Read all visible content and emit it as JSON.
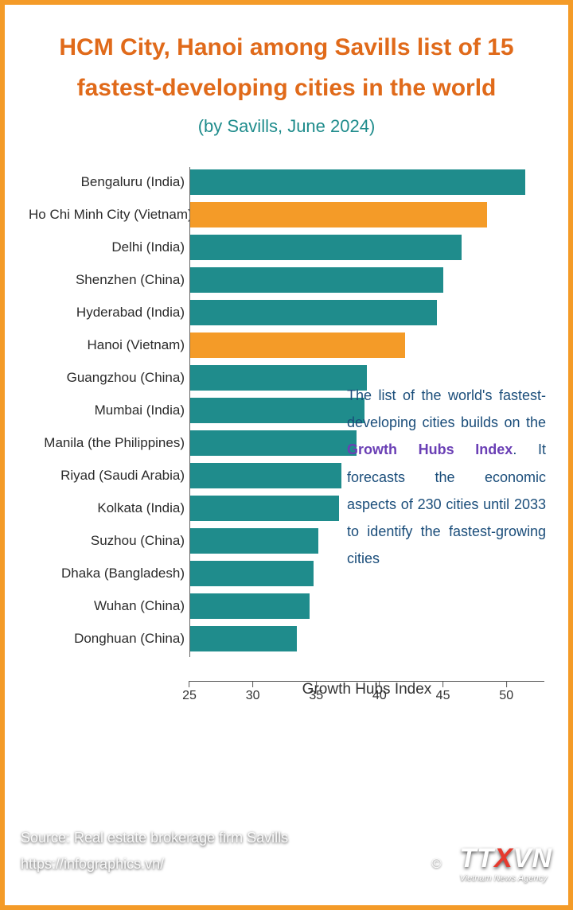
{
  "title": "HCM City, Hanoi among Savills list of 15 fastest-developing cities in the world",
  "subtitle": "(by Savills, June 2024)",
  "chart": {
    "type": "bar-horizontal",
    "x_label": "Growth Hubs Index",
    "x_min": 25,
    "x_max": 53,
    "x_ticks": [
      25,
      30,
      35,
      40,
      45,
      50
    ],
    "default_bar_color": "#1f8c8c",
    "highlight_bar_color": "#f49b28",
    "label_fontsize": 17,
    "tick_fontsize": 16,
    "bars": [
      {
        "label": "Bengaluru (India)",
        "value": 51.5,
        "highlight": false
      },
      {
        "label": "Ho Chi Minh City (Vietnam)",
        "value": 48.5,
        "highlight": true
      },
      {
        "label": "Delhi (India)",
        "value": 46.5,
        "highlight": false
      },
      {
        "label": "Shenzhen (China)",
        "value": 45.0,
        "highlight": false
      },
      {
        "label": "Hyderabad (India)",
        "value": 44.5,
        "highlight": false
      },
      {
        "label": "Hanoi (Vietnam)",
        "value": 42.0,
        "highlight": true
      },
      {
        "label": "Guangzhou (China)",
        "value": 39.0,
        "highlight": false
      },
      {
        "label": "Mumbai (India)",
        "value": 38.8,
        "highlight": false
      },
      {
        "label": "Manila (the Philippines)",
        "value": 38.2,
        "highlight": false
      },
      {
        "label": "Riyad (Saudi Arabia)",
        "value": 37.0,
        "highlight": false
      },
      {
        "label": "Kolkata (India)",
        "value": 36.8,
        "highlight": false
      },
      {
        "label": "Suzhou (China)",
        "value": 35.2,
        "highlight": false
      },
      {
        "label": "Dhaka (Bangladesh)",
        "value": 34.8,
        "highlight": false
      },
      {
        "label": "Wuhan (China)",
        "value": 34.5,
        "highlight": false
      },
      {
        "label": "Donghuan (China)",
        "value": 33.5,
        "highlight": false
      }
    ]
  },
  "annotation": {
    "pre": "The list of the world's fastest-developing cities builds on the ",
    "highlight": "Growth Hubs Index",
    "post": ". It forecasts the economic aspects of 230 cities until 2033 to identify the fastest-growing cities",
    "text_color": "#1a4d7a",
    "highlight_color": "#6a3fb5"
  },
  "footer": {
    "source": "Source: Real estate brokerage firm Savills",
    "url": "https://infographics.vn/"
  },
  "logo": {
    "copyright": "©",
    "main": "TTXVN",
    "sub": "Vietnam News Agency"
  },
  "colors": {
    "frame": "#f49b28",
    "title": "#e06a1a",
    "subtitle": "#1f8c8c",
    "background": "#ffffff"
  }
}
